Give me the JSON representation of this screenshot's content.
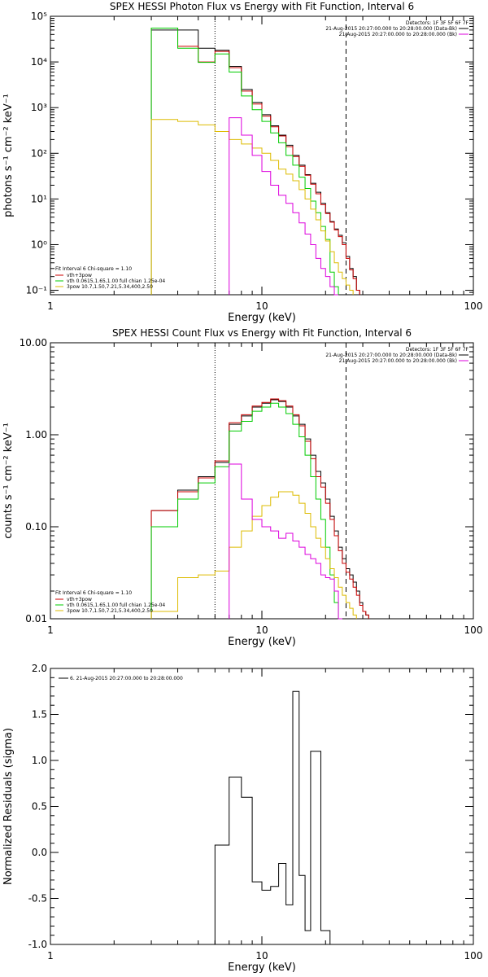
{
  "chart_data": [
    {
      "type": "line",
      "title": "SPEX HESSI Photon Flux vs Energy with Fit Function, Interval 6",
      "xlabel": "Energy (keV)",
      "ylabel": "photons s⁻¹ cm⁻² keV⁻¹",
      "xscale": "log",
      "yscale": "log",
      "xlim": [
        1,
        100
      ],
      "ylim": [
        0.08,
        100000
      ],
      "x_ticks": [
        {
          "v": 1,
          "label": "1"
        },
        {
          "v": 10,
          "label": "10"
        },
        {
          "v": 100,
          "label": "100"
        }
      ],
      "y_ticks": [
        {
          "v": 0.1,
          "label": "10⁻¹"
        },
        {
          "v": 1,
          "label": "10⁰"
        },
        {
          "v": 10,
          "label": "10¹"
        },
        {
          "v": 100,
          "label": "10²"
        },
        {
          "v": 1000,
          "label": "10³"
        },
        {
          "v": 10000,
          "label": "10⁴"
        },
        {
          "v": 100000,
          "label": "10⁵"
        }
      ],
      "vlines": [
        {
          "x": 6.0,
          "style": "dotted"
        },
        {
          "x": 25.0,
          "style": "dashed"
        }
      ],
      "bin_edges": [
        3,
        4,
        5,
        6,
        7,
        8,
        9,
        10,
        11,
        12,
        13,
        14,
        15,
        16,
        17,
        18,
        19,
        20,
        21,
        22,
        23,
        24,
        25,
        26,
        27,
        28,
        29,
        30,
        31,
        32,
        33,
        34
      ],
      "series": [
        {
          "name": "black",
          "color": "#000000",
          "values": [
            50000,
            50000,
            20000,
            18000,
            8000,
            2500,
            1300,
            700,
            400,
            250,
            150,
            90,
            55,
            34,
            22,
            14,
            8,
            5,
            3.2,
            2.2,
            1.6,
            1.1,
            0.55,
            0.3,
            0.2,
            0.1,
            null,
            null,
            null,
            null,
            null
          ]
        },
        {
          "name": "vth+3pow",
          "color": "#cc0000",
          "values": [
            55000,
            22000,
            10000,
            17000,
            7500,
            2300,
            1200,
            650,
            380,
            240,
            140,
            85,
            52,
            33,
            21,
            13,
            7.5,
            4.8,
            3.1,
            2.1,
            1.5,
            1.0,
            0.5,
            0.28,
            0.18,
            0.1,
            null,
            null,
            null,
            null,
            null
          ]
        },
        {
          "name": "vth 0.0615,1.65,1.00  full chian 1.25e-04",
          "color": "#00cc00",
          "values": [
            55000,
            20000,
            9800,
            15000,
            6000,
            1800,
            900,
            500,
            280,
            170,
            90,
            55,
            30,
            17,
            9,
            5,
            2.5,
            1.3,
            0.25,
            0.12,
            null,
            null,
            null,
            null,
            null,
            null,
            null,
            null,
            null,
            null,
            null
          ]
        },
        {
          "name": "3pow 10.7,1.50,7.21,5.34,400,2.50",
          "color": "#ddbb00",
          "values": [
            550,
            500,
            420,
            300,
            200,
            160,
            130,
            100,
            70,
            45,
            35,
            25,
            16,
            10,
            6,
            3.5,
            2,
            1.2,
            0.7,
            0.4,
            0.25,
            0.18,
            0.13,
            0.1,
            null,
            null,
            null,
            null,
            null,
            null,
            null
          ]
        },
        {
          "name": "magenta",
          "color": "#dd00dd",
          "values": [
            null,
            null,
            null,
            null,
            600,
            250,
            90,
            40,
            20,
            12,
            8,
            5,
            3,
            1.7,
            1,
            0.5,
            0.3,
            0.2,
            0.12,
            0.08,
            null,
            null,
            null,
            null,
            null,
            null,
            null,
            null,
            null,
            null,
            null
          ]
        }
      ],
      "legend_left_title": "Fit Interval  6    Chi-square = 1.10",
      "legend_left": [
        "vth+3pow",
        "vth 0.0615,1.65,1.00  full chian 1.25e-04",
        "3pow 10.7,1.50,7.21,5.34,400,2.50"
      ],
      "legend_right": [
        "Detectors: 1F 3F 5F 6F 7F",
        "21-Aug-2015 20:27:00.000 to 20:28:00.000 (Data-Bk)",
        "21-Aug-2015 20:27:00.000 to 20:28:00.000 (Bk)"
      ]
    },
    {
      "type": "line",
      "title": "SPEX HESSI Count Flux vs Energy with Fit Function, Interval 6",
      "xlabel": "Energy (keV)",
      "ylabel": "counts s⁻¹ cm⁻² keV⁻¹",
      "xscale": "log",
      "yscale": "log",
      "xlim": [
        1,
        100
      ],
      "ylim": [
        0.01,
        10
      ],
      "x_ticks": [
        {
          "v": 1,
          "label": "1"
        },
        {
          "v": 10,
          "label": "10"
        },
        {
          "v": 100,
          "label": "100"
        }
      ],
      "y_ticks": [
        {
          "v": 0.01,
          "label": "0.01"
        },
        {
          "v": 0.1,
          "label": "0.10"
        },
        {
          "v": 1,
          "label": "1.00"
        },
        {
          "v": 10,
          "label": "10.00"
        }
      ],
      "vlines": [
        {
          "x": 6.0,
          "style": "dotted"
        },
        {
          "x": 25.0,
          "style": "dashed"
        }
      ],
      "bin_edges": [
        3,
        4,
        5,
        6,
        7,
        8,
        9,
        10,
        11,
        12,
        13,
        14,
        15,
        16,
        17,
        18,
        19,
        20,
        21,
        22,
        23,
        24,
        25,
        26,
        27,
        28,
        29,
        30,
        31,
        32,
        33,
        34
      ],
      "series": [
        {
          "name": "black",
          "color": "#000000",
          "values": [
            0.15,
            0.25,
            0.35,
            0.5,
            1.3,
            1.6,
            2.0,
            2.2,
            2.4,
            2.3,
            2.0,
            1.6,
            1.3,
            0.9,
            0.6,
            0.4,
            0.3,
            0.2,
            0.13,
            0.09,
            0.06,
            0.045,
            0.035,
            0.03,
            0.025,
            0.02,
            0.015,
            0.012,
            0.011,
            null,
            null
          ]
        },
        {
          "name": "vth+3pow",
          "color": "#cc0000",
          "values": [
            0.15,
            0.24,
            0.34,
            0.52,
            1.35,
            1.65,
            2.05,
            2.25,
            2.45,
            2.35,
            2.05,
            1.65,
            1.25,
            0.85,
            0.55,
            0.35,
            0.27,
            0.18,
            0.12,
            0.08,
            0.055,
            0.04,
            0.032,
            0.027,
            0.022,
            0.018,
            0.014,
            0.012,
            0.011,
            null,
            null
          ]
        },
        {
          "name": "vth 0.0615,1.65,1.00  full chian 1.25e-04",
          "color": "#00cc00",
          "values": [
            0.1,
            0.2,
            0.3,
            0.45,
            1.1,
            1.4,
            1.8,
            2.0,
            2.2,
            2.0,
            1.7,
            1.3,
            0.95,
            0.6,
            0.35,
            0.2,
            0.12,
            0.06,
            0.03,
            0.015,
            0.01,
            null,
            null,
            null,
            null,
            null,
            null,
            null,
            null,
            null,
            null
          ]
        },
        {
          "name": "3pow 10.7,1.50,7.21,5.34,400,2.50",
          "color": "#ddbb00",
          "values": [
            0.012,
            0.028,
            0.03,
            0.033,
            0.06,
            0.09,
            0.13,
            0.17,
            0.21,
            0.24,
            0.24,
            0.22,
            0.18,
            0.14,
            0.1,
            0.075,
            0.06,
            0.045,
            0.035,
            0.028,
            0.022,
            0.018,
            0.015,
            0.013,
            0.011,
            null,
            null,
            null,
            null,
            null,
            null
          ]
        },
        {
          "name": "magenta",
          "color": "#dd00dd",
          "values": [
            null,
            null,
            null,
            null,
            0.48,
            0.2,
            0.12,
            0.1,
            0.09,
            0.075,
            0.085,
            0.07,
            0.06,
            0.05,
            0.045,
            0.04,
            0.03,
            0.028,
            0.027,
            0.02,
            0.01,
            null,
            null,
            null,
            null,
            null,
            null,
            null,
            null,
            null,
            null
          ]
        }
      ],
      "legend_left_title": "Fit Interval  6    Chi-square = 1.10",
      "legend_left": [
        "vth+3pow",
        "vth 0.0615,1.65,1.00  full chian 1.25e-04",
        "3pow 10.7,1.50,7.21,5.34,400,2.50"
      ],
      "legend_right": [
        "Detectors: 1F 3F 5F 6F 7F",
        "21-Aug-2015 20:27:00.000 to 20:28:00.000 (Data-Bk)",
        "21-Aug-2015 20:27:00.000 to 20:28:00.000 (Bk)"
      ]
    },
    {
      "type": "line",
      "title": "",
      "xlabel": "Energy (keV)",
      "ylabel": "Normalized Residuals (sigma)",
      "xscale": "log",
      "yscale": "linear",
      "xlim": [
        1,
        100
      ],
      "ylim": [
        -1.0,
        2.0
      ],
      "x_ticks": [
        {
          "v": 1,
          "label": "1"
        },
        {
          "v": 10,
          "label": "10"
        },
        {
          "v": 100,
          "label": "100"
        }
      ],
      "y_ticks": [
        {
          "v": -1.0,
          "label": "-1.0"
        },
        {
          "v": -0.5,
          "label": "-0.5"
        },
        {
          "v": 0.0,
          "label": "0.0"
        },
        {
          "v": 0.5,
          "label": "0.5"
        },
        {
          "v": 1.0,
          "label": "1.0"
        },
        {
          "v": 1.5,
          "label": "1.5"
        },
        {
          "v": 2.0,
          "label": "2.0"
        }
      ],
      "bin_edges": [
        6.0,
        7.0,
        8.0,
        9.0,
        10.0,
        11.0,
        12.0,
        13.0,
        14.0,
        15.0,
        16.0,
        17.0,
        19.0,
        21.0,
        23.0,
        25.0
      ],
      "series": [
        {
          "name": "6. 21-Aug-2015 20:27:00.000 to 20:28:00.000",
          "color": "#000000",
          "values": [
            0.08,
            0.82,
            0.6,
            -0.32,
            -0.41,
            -0.37,
            -0.12,
            -0.57,
            1.75,
            -0.25,
            -0.85,
            1.1,
            -0.85,
            -1.0,
            null
          ]
        }
      ],
      "legend_right": [
        "6. 21-Aug-2015 20:27:00.000 to 20:28:00.000"
      ]
    }
  ]
}
